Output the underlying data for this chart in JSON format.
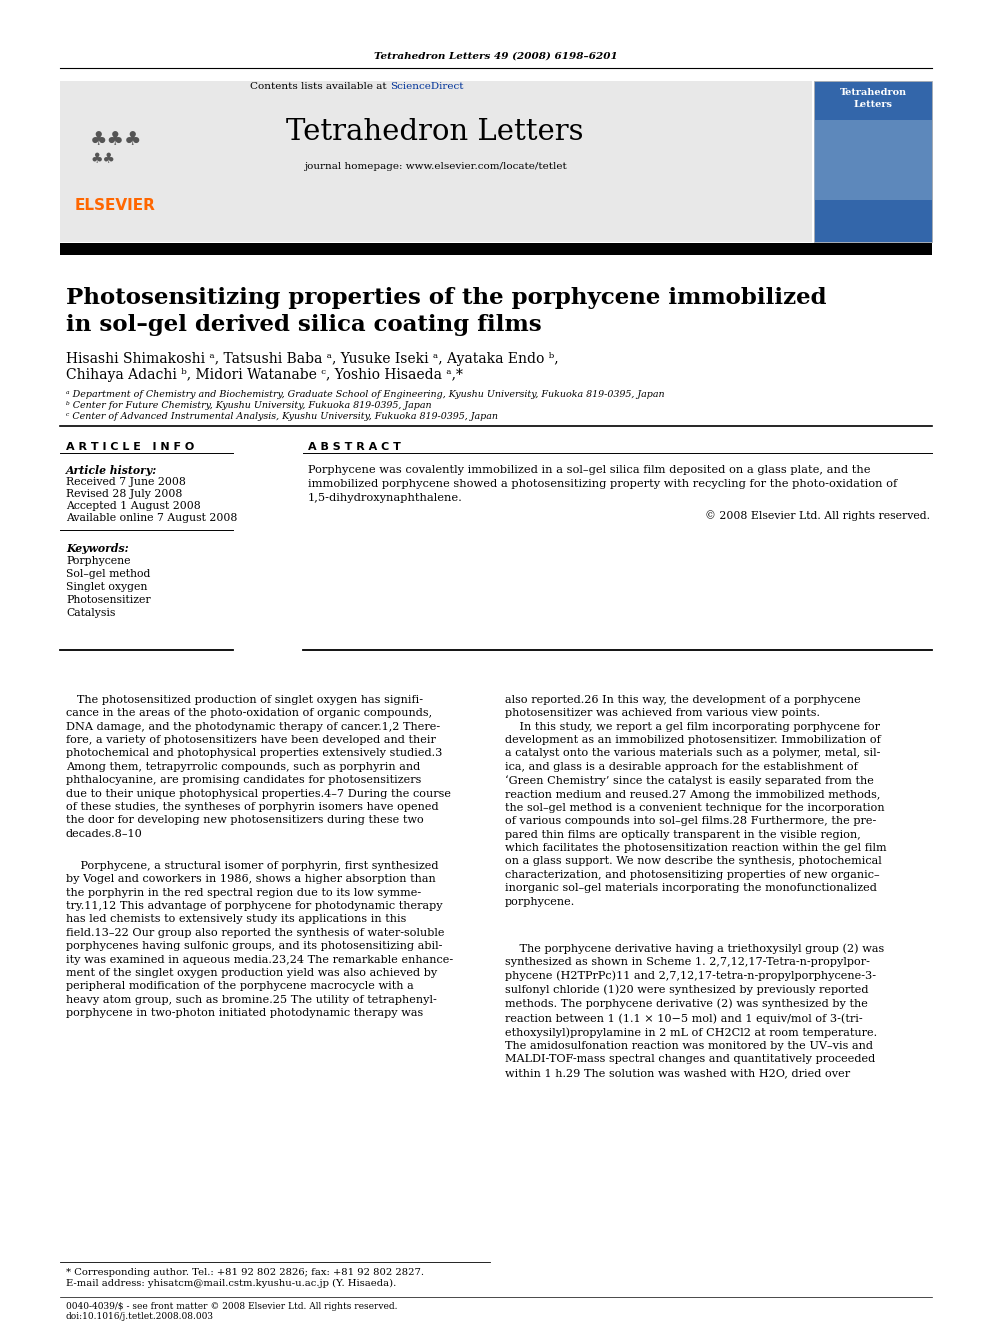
{
  "bg_color": "#ffffff",
  "page_citation": "Tetrahedron Letters 49 (2008) 6198–6201",
  "journal_name": "Tetrahedron Letters",
  "journal_homepage": "journal homepage: www.elsevier.com/locate/tetlet",
  "contents_line": "Contents lists available at ScienceDirect",
  "article_title": "Photosensitizing properties of the porphycene immobilized\nin sol–gel derived silica coating films",
  "authors_line1": "Hisashi Shimakoshi ᵃ, Tatsushi Baba ᵃ, Yusuke Iseki ᵃ, Ayataka Endo ᵇ,",
  "authors_line2": "Chihaya Adachi ᵇ, Midori Watanabe ᶜ, Yoshio Hisaeda ᵃ,*",
  "affil_a": "ᵃ Department of Chemistry and Biochemistry, Graduate School of Engineering, Kyushu University, Fukuoka 819-0395, Japan",
  "affil_b": "ᵇ Center for Future Chemistry, Kyushu University, Fukuoka 819-0395, Japan",
  "affil_c": "ᶜ Center of Advanced Instrumental Analysis, Kyushu University, Fukuoka 819-0395, Japan",
  "article_info_header": "A R T I C L E   I N F O",
  "abstract_header": "A B S T R A C T",
  "article_history_label": "Article history:",
  "received": "Received 7 June 2008",
  "revised": "Revised 28 July 2008",
  "accepted": "Accepted 1 August 2008",
  "available": "Available online 7 August 2008",
  "keywords_label": "Keywords:",
  "keywords": [
    "Porphycene",
    "Sol–gel method",
    "Singlet oxygen",
    "Photosensitizer",
    "Catalysis"
  ],
  "abstract_text": "Porphycene was covalently immobilized in a sol–gel silica film deposited on a glass plate, and the\nimmobilized porphycene showed a photosensitizing property with recycling for the photo-oxidation of\n1,5-dihydroxynaphthalene.",
  "copyright": "© 2008 Elsevier Ltd. All rights reserved.",
  "footnote_star": "* Corresponding author. Tel.: +81 92 802 2826; fax: +81 92 802 2827.",
  "footnote_email": "E-mail address: yhisatcm@mail.cstm.kyushu-u.ac.jp (Y. Hisaeda).",
  "footer_left": "0040-4039/$ - see front matter © 2008 Elsevier Ltd. All rights reserved.",
  "footer_doi": "doi:10.1016/j.tetlet.2008.08.003",
  "header_gray_color": "#e8e8e8",
  "elsevier_orange": "#FF6600",
  "sciencedirect_blue": "#003399",
  "black_bar": "#000000",
  "cover_blue": "#3366aa",
  "body_col1": "   The photosensitized production of singlet oxygen has signifi-\ncance in the areas of the photo-oxidation of organic compounds,\nDNA damage, and the photodynamic therapy of cancer.1,2 There-\nfore, a variety of photosensitizers have been developed and their\nphotochemical and photophysical properties extensively studied.3\nAmong them, tetrapyrrolic compounds, such as porphyrin and\nphthalocyanine, are promising candidates for photosensitizers\ndue to their unique photophysical properties.4–7 During the course\nof these studies, the syntheses of porphyrin isomers have opened\nthe door for developing new photosensitizers during these two\ndecades.8–10",
  "body_col1_p2": "    Porphycene, a structural isomer of porphyrin, first synthesized\nby Vogel and coworkers in 1986, shows a higher absorption than\nthe porphyrin in the red spectral region due to its low symme-\ntry.11,12 This advantage of porphycene for photodynamic therapy\nhas led chemists to extensively study its applications in this\nfield.13–22 Our group also reported the synthesis of water-soluble\nporphycenes having sulfonic groups, and its photosensitizing abil-\nity was examined in aqueous media.23,24 The remarkable enhance-\nment of the singlet oxygen production yield was also achieved by\nperipheral modification of the porphycene macrocycle with a\nheavy atom group, such as bromine.25 The utility of tetraphenyl-\nporphycene in two-photon initiated photodynamic therapy was",
  "body_col2": "also reported.26 In this way, the development of a porphycene\nphotosensitizer was achieved from various view points.\n    In this study, we report a gel film incorporating porphycene for\ndevelopment as an immobilized photosensitizer. Immobilization of\na catalyst onto the various materials such as a polymer, metal, sil-\nica, and glass is a desirable approach for the establishment of\n‘Green Chemistry’ since the catalyst is easily separated from the\nreaction medium and reused.27 Among the immobilized methods,\nthe sol–gel method is a convenient technique for the incorporation\nof various compounds into sol–gel films.28 Furthermore, the pre-\npared thin films are optically transparent in the visible region,\nwhich facilitates the photosensitization reaction within the gel film\non a glass support. We now describe the synthesis, photochemical\ncharacterization, and photosensitizing properties of new organic–\ninorganic sol–gel materials incorporating the monofunctionalized\nporphycene.",
  "body_col2_p2": "    The porphycene derivative having a triethoxysilyl group (2) was\nsynthesized as shown in Scheme 1. 2,7,12,17-Tetra-n-propylpor-\nphycene (H2TPrPc)11 and 2,7,12,17-tetra-n-propylporphycene-3-\nsulfonyl chloride (1)20 were synthesized by previously reported\nmethods. The porphycene derivative (2) was synthesized by the\nreaction between 1 (1.1 × 10−5 mol) and 1 equiv/mol of 3-(tri-\nethoxysilyl)propylamine in 2 mL of CH2Cl2 at room temperature.\nThe amidosulfonation reaction was monitored by the UV–vis and\nMALDI-TOF-mass spectral changes and quantitatively proceeded\nwithin 1 h.29 The solution was washed with H2O, dried over"
}
